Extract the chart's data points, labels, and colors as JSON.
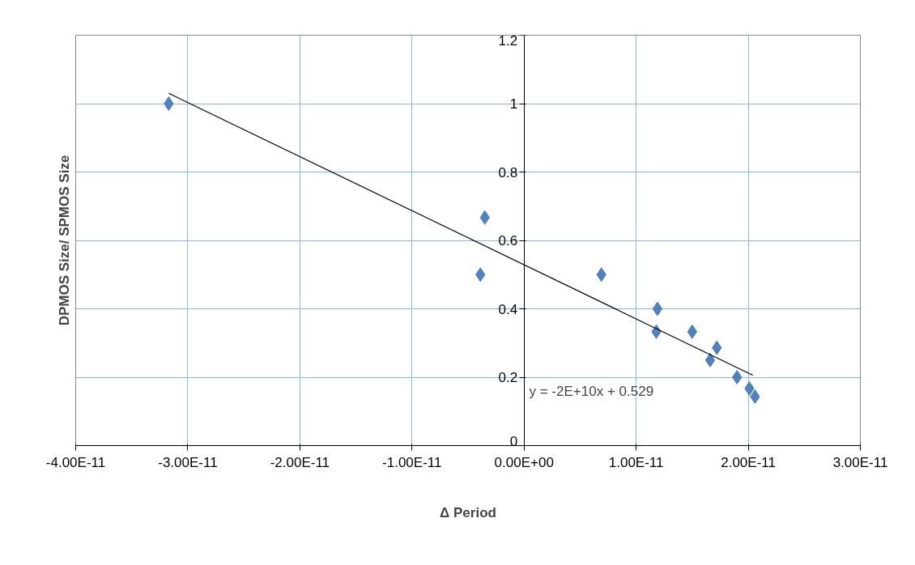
{
  "chart_data": {
    "type": "scatter",
    "xlabel": "Δ Period",
    "ylabel": "DPMOS Size/ SPMOS Size",
    "marker": "diamond",
    "grid": true,
    "xlim": [
      -4e-11,
      3e-11
    ],
    "xticks": [
      {
        "value": -4e-11,
        "label": "-4.00E-11"
      },
      {
        "value": -3e-11,
        "label": "-3.00E-11"
      },
      {
        "value": -2e-11,
        "label": "-2.00E-11"
      },
      {
        "value": -1e-11,
        "label": "-1.00E-11"
      },
      {
        "value": 0,
        "label": "0.00E+00"
      },
      {
        "value": 1e-11,
        "label": "1.00E-11"
      },
      {
        "value": 2e-11,
        "label": "2.00E-11"
      },
      {
        "value": 3e-11,
        "label": "3.00E-11"
      }
    ],
    "ylim": [
      0,
      1.2
    ],
    "yticks": [
      0,
      0.2,
      0.4,
      0.6,
      0.8,
      1,
      1.2
    ],
    "series": [
      {
        "type": "scatter",
        "color": "#4f81bd",
        "x": [
          -3.17e-11,
          -3.5e-12,
          -3.9e-12,
          6.9e-12,
          1.19e-11,
          1.18e-11,
          1.5e-11,
          1.72e-11,
          1.66e-11,
          1.9e-11,
          2.01e-11,
          2.06e-11
        ],
        "values": [
          1.0,
          0.667,
          0.5,
          0.5,
          0.4,
          0.333,
          0.333,
          0.286,
          0.25,
          0.2,
          0.167,
          0.143
        ]
      },
      {
        "type": "line",
        "marker": "none",
        "color": "#000000",
        "x": [
          -3.17e-11,
          2.04e-11
        ],
        "values": [
          1.03,
          0.206
        ]
      }
    ],
    "annotations": [
      "y = -2E+10x + 0.529"
    ]
  }
}
